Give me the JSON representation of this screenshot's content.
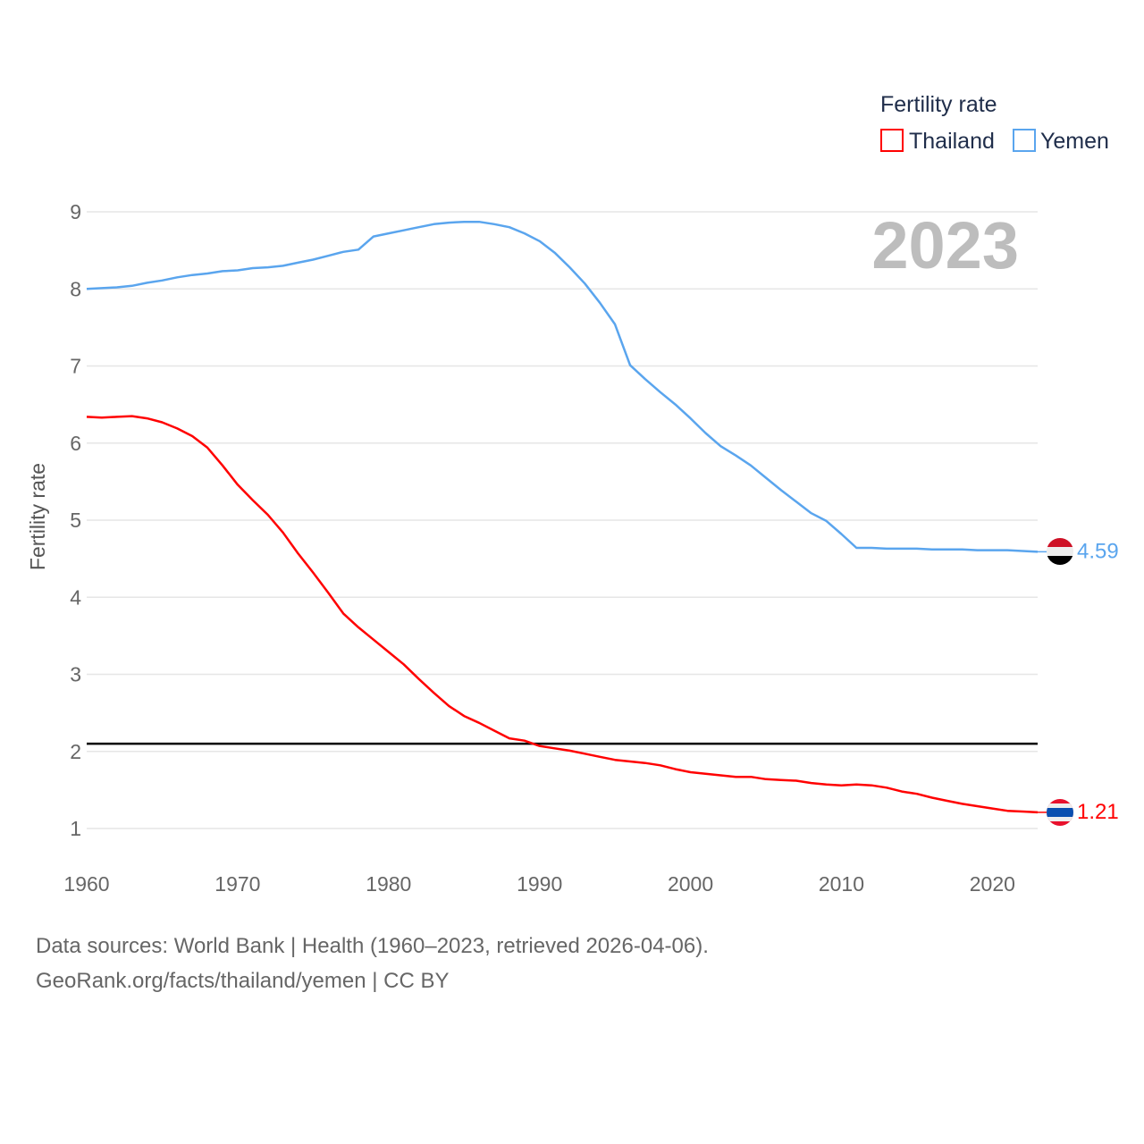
{
  "chart_data": {
    "type": "line",
    "title": "Fertility rate",
    "year_label": "2023",
    "xlabel": "",
    "ylabel": "Fertility rate",
    "xlim": [
      1960,
      2023
    ],
    "ylim": [
      1,
      9
    ],
    "x_ticks": [
      "1960",
      "1970",
      "1980",
      "1990",
      "2000",
      "2010",
      "2020"
    ],
    "y_ticks": [
      "1",
      "2",
      "3",
      "4",
      "5",
      "6",
      "7",
      "8",
      "9"
    ],
    "grid": true,
    "legend_position": "top-right",
    "reference_line": {
      "value": 2.1,
      "color": "#000000"
    },
    "x": [
      1960,
      1961,
      1962,
      1963,
      1964,
      1965,
      1966,
      1967,
      1968,
      1969,
      1970,
      1971,
      1972,
      1973,
      1974,
      1975,
      1976,
      1977,
      1978,
      1979,
      1980,
      1981,
      1982,
      1983,
      1984,
      1985,
      1986,
      1987,
      1988,
      1989,
      1990,
      1991,
      1992,
      1993,
      1994,
      1995,
      1996,
      1997,
      1998,
      1999,
      2000,
      2001,
      2002,
      2003,
      2004,
      2005,
      2006,
      2007,
      2008,
      2009,
      2010,
      2011,
      2012,
      2013,
      2014,
      2015,
      2016,
      2017,
      2018,
      2019,
      2020,
      2021,
      2022,
      2023
    ],
    "series": [
      {
        "name": "Thailand",
        "color": "#ff0000",
        "end_label": "1.21",
        "values": [
          6.34,
          6.33,
          6.34,
          6.35,
          6.32,
          6.27,
          6.19,
          6.09,
          5.94,
          5.71,
          5.46,
          5.26,
          5.07,
          4.84,
          4.57,
          4.32,
          4.06,
          3.79,
          3.61,
          3.45,
          3.29,
          3.13,
          2.94,
          2.76,
          2.59,
          2.46,
          2.37,
          2.27,
          2.17,
          2.14,
          2.07,
          2.04,
          2.01,
          1.97,
          1.93,
          1.89,
          1.87,
          1.85,
          1.82,
          1.77,
          1.73,
          1.71,
          1.69,
          1.67,
          1.67,
          1.64,
          1.63,
          1.62,
          1.59,
          1.57,
          1.56,
          1.57,
          1.56,
          1.53,
          1.48,
          1.45,
          1.4,
          1.36,
          1.32,
          1.29,
          1.26,
          1.23,
          1.22,
          1.21
        ]
      },
      {
        "name": "Yemen",
        "color": "#5aa5ee",
        "end_label": "4.59",
        "values": [
          8.0,
          8.01,
          8.02,
          8.04,
          8.08,
          8.11,
          8.15,
          8.18,
          8.2,
          8.23,
          8.24,
          8.27,
          8.28,
          8.3,
          8.34,
          8.38,
          8.43,
          8.48,
          8.51,
          8.68,
          8.72,
          8.76,
          8.8,
          8.84,
          8.86,
          8.87,
          8.87,
          8.84,
          8.8,
          8.72,
          8.62,
          8.47,
          8.28,
          8.07,
          7.82,
          7.54,
          7.01,
          6.83,
          6.66,
          6.5,
          6.32,
          6.13,
          5.96,
          5.84,
          5.71,
          5.55,
          5.39,
          5.24,
          5.09,
          4.99,
          4.82,
          4.64,
          4.64,
          4.63,
          4.63,
          4.63,
          4.62,
          4.62,
          4.62,
          4.61,
          4.61,
          4.61,
          4.6,
          4.59
        ]
      }
    ]
  },
  "footer": {
    "line1": "Data sources: World Bank | Health (1960–2023, retrieved 2026-04-06).",
    "line2": "GeoRank.org/facts/thailand/yemen | CC BY"
  }
}
